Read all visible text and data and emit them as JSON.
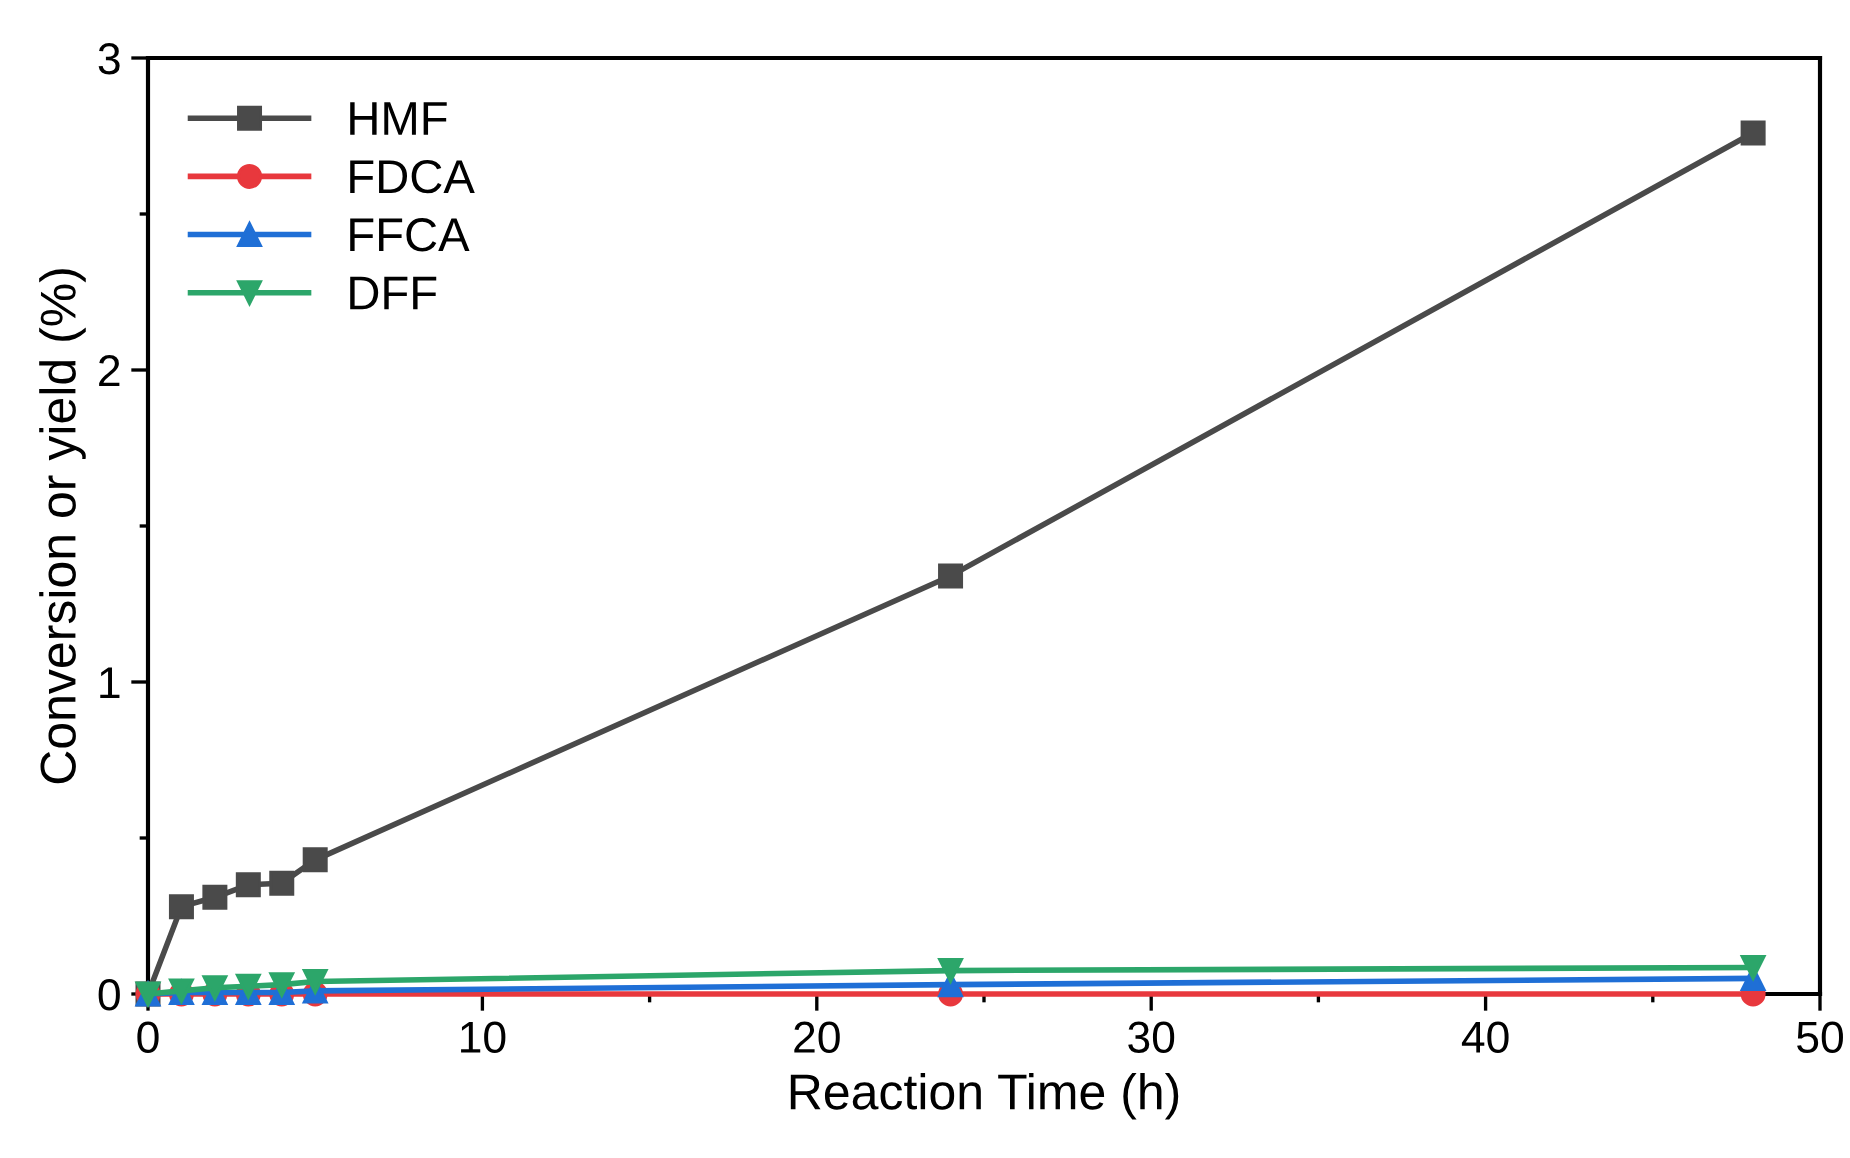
{
  "chart_data": {
    "type": "line",
    "xlabel": "Reaction Time (h)",
    "ylabel": "Conversion or yield (%)",
    "x": [
      0,
      1,
      2,
      3,
      4,
      5,
      24,
      48
    ],
    "series": [
      {
        "name": "HMF",
        "color": "#4a4a4a",
        "marker": "square",
        "values": [
          0,
          0.28,
          0.31,
          0.35,
          0.355,
          0.43,
          1.34,
          2.76
        ]
      },
      {
        "name": "FDCA",
        "color": "#e8383d",
        "marker": "circle",
        "values": [
          0,
          0,
          0,
          0,
          0,
          0,
          0,
          0
        ]
      },
      {
        "name": "FFCA",
        "color": "#1f6fd6",
        "marker": "triangle",
        "values": [
          0,
          0.005,
          0.005,
          0.005,
          0.005,
          0.01,
          0.03,
          0.05
        ]
      },
      {
        "name": "DFF",
        "color": "#2ca66a",
        "marker": "triangle_down",
        "values": [
          0,
          0.01,
          0.02,
          0.025,
          0.03,
          0.04,
          0.075,
          0.085
        ]
      }
    ],
    "xlim": [
      0,
      50
    ],
    "ylim": [
      0,
      3
    ],
    "xticks": [
      0,
      10,
      20,
      30,
      40,
      50
    ],
    "yticks": [
      0,
      1,
      2,
      3
    ],
    "grid": false,
    "legend": "top left",
    "line_style": "solid"
  }
}
